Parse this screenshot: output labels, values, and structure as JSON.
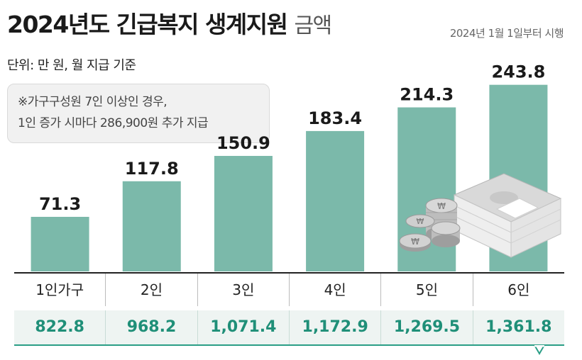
{
  "header": {
    "title_bold": "2024년도 긴급복지 생계지원",
    "title_light": "금액",
    "effective": "2024년 1월 1일부터 시행",
    "unit": "단위: 만 원, 월 지급 기준"
  },
  "note": {
    "line1": "※가구구성원 7인 이상인 경우,",
    "line2": "1인 증가 시마다 286,900원 추가 지급"
  },
  "colors": {
    "bar": "#7bb9aa",
    "value_text": "#1f8f78",
    "accent": "#2a9e86"
  },
  "icons": {
    "decoration": "money-bills-coins-icon"
  },
  "chart_data": {
    "type": "bar",
    "categories": [
      "1인가구",
      "2인",
      "3인",
      "4인",
      "5인",
      "6인"
    ],
    "values": [
      71.3,
      117.8,
      150.9,
      183.4,
      214.3,
      243.8
    ],
    "value_labels": [
      "71.3",
      "117.8",
      "150.9",
      "183.4",
      "214.3",
      "243.8"
    ],
    "ylim": [
      0,
      262
    ],
    "grid": false
  },
  "table": {
    "values": [
      "822.8",
      "968.2",
      "1,071.4",
      "1,172.9",
      "1,269.5",
      "1,361.8"
    ]
  }
}
